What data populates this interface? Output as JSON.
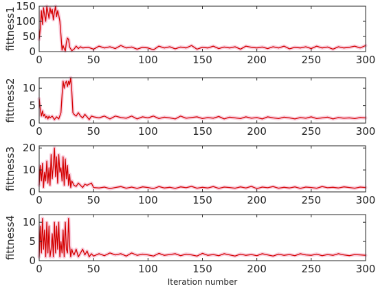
{
  "chart_data": [
    {
      "type": "line",
      "ylabel": "fittness1",
      "xlabel": "",
      "xlim": [
        0,
        300
      ],
      "ylim": [
        0,
        150
      ],
      "xticks": [
        0,
        50,
        100,
        150,
        200,
        250,
        300
      ],
      "yticks": [
        0,
        50,
        100,
        150
      ],
      "grid": false,
      "series": [
        {
          "color": "#d40000",
          "x": [
            0,
            1,
            2,
            3,
            4,
            5,
            6,
            7,
            8,
            9,
            10,
            11,
            12,
            13,
            14,
            15,
            16,
            17,
            18,
            19,
            20,
            21,
            22,
            23,
            24,
            25,
            26,
            27,
            28,
            30,
            32,
            34,
            36,
            38,
            40,
            45,
            50,
            55,
            60,
            65,
            70,
            75,
            80,
            85,
            90,
            95,
            100,
            105,
            110,
            115,
            120,
            125,
            130,
            135,
            140,
            145,
            150,
            155,
            160,
            165,
            170,
            175,
            180,
            185,
            190,
            195,
            200,
            205,
            210,
            215,
            220,
            225,
            230,
            235,
            240,
            245,
            250,
            255,
            260,
            265,
            270,
            275,
            280,
            285,
            290,
            295,
            300
          ],
          "y": [
            40,
            75,
            135,
            90,
            145,
            120,
            100,
            150,
            130,
            110,
            145,
            125,
            140,
            105,
            130,
            150,
            115,
            135,
            120,
            100,
            55,
            5,
            20,
            10,
            2,
            30,
            45,
            40,
            15,
            3,
            8,
            18,
            10,
            16,
            12,
            14,
            8,
            18,
            12,
            16,
            10,
            20,
            12,
            15,
            8,
            14,
            12,
            6,
            18,
            12,
            16,
            9,
            15,
            12,
            20,
            8,
            14,
            12,
            18,
            10,
            15,
            12,
            16,
            8,
            18,
            14,
            12,
            15,
            10,
            16,
            12,
            18,
            9,
            14,
            12,
            16,
            10,
            18,
            12,
            15,
            8,
            16,
            12,
            14,
            18,
            12,
            20
          ]
        }
      ]
    },
    {
      "type": "line",
      "ylabel": "fittness2",
      "xlabel": "",
      "xlim": [
        0,
        300
      ],
      "ylim": [
        0,
        13
      ],
      "xticks": [
        0,
        50,
        100,
        150,
        200,
        250,
        300
      ],
      "yticks": [
        0,
        5,
        10
      ],
      "grid": false,
      "series": [
        {
          "color": "#d40000",
          "x": [
            0,
            1,
            2,
            3,
            4,
            5,
            6,
            7,
            8,
            9,
            10,
            12,
            14,
            16,
            18,
            20,
            21,
            22,
            23,
            24,
            25,
            26,
            27,
            28,
            29,
            30,
            31,
            32,
            34,
            36,
            38,
            40,
            42,
            44,
            46,
            48,
            50,
            55,
            60,
            65,
            70,
            75,
            80,
            85,
            90,
            95,
            100,
            105,
            110,
            115,
            120,
            125,
            130,
            135,
            140,
            145,
            150,
            155,
            160,
            165,
            170,
            175,
            180,
            185,
            190,
            195,
            200,
            205,
            210,
            215,
            220,
            225,
            230,
            235,
            240,
            245,
            250,
            255,
            260,
            265,
            270,
            275,
            280,
            285,
            290,
            295,
            300
          ],
          "y": [
            7,
            4,
            2,
            3.5,
            2,
            2.5,
            1.5,
            2,
            1.2,
            2,
            1.5,
            2,
            1,
            1.8,
            1.2,
            3,
            8,
            12,
            10,
            11.5,
            12,
            10.5,
            12,
            11,
            13,
            9,
            3,
            2.5,
            2,
            3,
            2,
            1.5,
            2.5,
            1.8,
            1,
            2,
            1.8,
            1.5,
            2,
            1.2,
            2,
            1.6,
            1.4,
            2,
            1.2,
            1.8,
            1.5,
            2,
            1.3,
            1.7,
            1.5,
            1.2,
            2,
            1.4,
            1.6,
            1.8,
            1.3,
            1.6,
            1.4,
            1.9,
            1.2,
            1.7,
            1.5,
            1.3,
            1.8,
            1.4,
            1.6,
            1.2,
            1.8,
            1.5,
            1.3,
            1.7,
            1.5,
            1.2,
            1.6,
            1.4,
            1.8,
            1.3,
            1.5,
            1.7,
            1.2,
            1.6,
            1.4,
            1.5,
            1.3,
            1.6,
            1.5
          ]
        }
      ]
    },
    {
      "type": "line",
      "ylabel": "fittness3",
      "xlabel": "",
      "xlim": [
        0,
        300
      ],
      "ylim": [
        0,
        21
      ],
      "xticks": [
        0,
        50,
        100,
        150,
        200,
        250,
        300
      ],
      "yticks": [
        0,
        10,
        20
      ],
      "grid": false,
      "series": [
        {
          "color": "#d40000",
          "x": [
            0,
            1,
            2,
            3,
            4,
            5,
            6,
            7,
            8,
            9,
            10,
            11,
            12,
            13,
            14,
            15,
            16,
            17,
            18,
            19,
            20,
            21,
            22,
            23,
            24,
            25,
            26,
            27,
            28,
            29,
            30,
            32,
            34,
            36,
            38,
            40,
            42,
            44,
            46,
            48,
            50,
            55,
            60,
            65,
            70,
            75,
            80,
            85,
            90,
            95,
            100,
            105,
            110,
            115,
            120,
            125,
            130,
            135,
            140,
            145,
            150,
            155,
            160,
            165,
            170,
            175,
            180,
            185,
            190,
            195,
            200,
            205,
            210,
            215,
            220,
            225,
            230,
            235,
            240,
            245,
            250,
            255,
            260,
            265,
            270,
            275,
            280,
            285,
            290,
            295,
            300
          ],
          "y": [
            3,
            12,
            5,
            13,
            2,
            9,
            5,
            14,
            4,
            11,
            3,
            17,
            6,
            12,
            20,
            7,
            16,
            4,
            17,
            9,
            11,
            5,
            16,
            3,
            15,
            6,
            12,
            3,
            8,
            2,
            5,
            3,
            2.5,
            4,
            3,
            2,
            3.5,
            3,
            3.5,
            4,
            2,
            1.8,
            2.2,
            1.5,
            2,
            2.4,
            1.7,
            2.2,
            1.6,
            2.3,
            2,
            1.5,
            2.4,
            1.8,
            2.1,
            1.6,
            2.3,
            1.9,
            2.5,
            1.7,
            2.1,
            1.8,
            2.4,
            1.6,
            2.2,
            2,
            1.7,
            2.3,
            1.8,
            2.5,
            1.5,
            2.2,
            1.9,
            2.4,
            1.7,
            2.1,
            1.8,
            2.3,
            1.6,
            2.2,
            2,
            1.7,
            2.4,
            1.9,
            2.1,
            1.8,
            2.3,
            2,
            1.7,
            2.2,
            2
          ]
        }
      ]
    },
    {
      "type": "line",
      "ylabel": "fittness4",
      "xlabel": "Iteration number",
      "xlim": [
        0,
        300
      ],
      "ylim": [
        0,
        12
      ],
      "xticks": [
        0,
        50,
        100,
        150,
        200,
        250,
        300
      ],
      "yticks": [
        0,
        5,
        10
      ],
      "grid": false,
      "series": [
        {
          "color": "#d40000",
          "x": [
            0,
            1,
            2,
            3,
            4,
            5,
            6,
            7,
            8,
            9,
            10,
            11,
            12,
            13,
            14,
            15,
            16,
            17,
            18,
            19,
            20,
            21,
            22,
            23,
            24,
            25,
            26,
            27,
            28,
            29,
            30,
            31,
            32,
            34,
            36,
            38,
            40,
            42,
            44,
            46,
            48,
            50,
            55,
            60,
            65,
            70,
            75,
            80,
            85,
            90,
            95,
            100,
            105,
            110,
            115,
            120,
            125,
            130,
            135,
            140,
            145,
            150,
            155,
            160,
            165,
            170,
            175,
            180,
            185,
            190,
            195,
            200,
            205,
            210,
            215,
            220,
            225,
            230,
            235,
            240,
            245,
            250,
            255,
            260,
            265,
            270,
            275,
            280,
            285,
            290,
            295,
            300
          ],
          "y": [
            1,
            9,
            2,
            11,
            3,
            8,
            1,
            10,
            2,
            9,
            1,
            3,
            7,
            1,
            10,
            2,
            9,
            3,
            10,
            1,
            5,
            2,
            8,
            1,
            10,
            3,
            2,
            11,
            4,
            1,
            3,
            2,
            1.5,
            3,
            1,
            2,
            3,
            1.5,
            2.5,
            1,
            1.8,
            1.2,
            1.8,
            1.3,
            2,
            1.5,
            1.8,
            1.2,
            2,
            1.4,
            1.7,
            1.5,
            1.2,
            1.9,
            1.4,
            1.6,
            1.8,
            1.3,
            1.7,
            1.5,
            1.2,
            1.9,
            1.4,
            1.6,
            1.3,
            1.8,
            1.5,
            1.2,
            1.7,
            1.4,
            1.6,
            1.3,
            1.8,
            1.5,
            1.2,
            1.7,
            1.4,
            1.6,
            1.3,
            1.8,
            1.5,
            1.4,
            1.7,
            1.3,
            1.6,
            1.4,
            1.8,
            1.5,
            1.3,
            1.6,
            1.5,
            1.4
          ]
        }
      ]
    }
  ]
}
